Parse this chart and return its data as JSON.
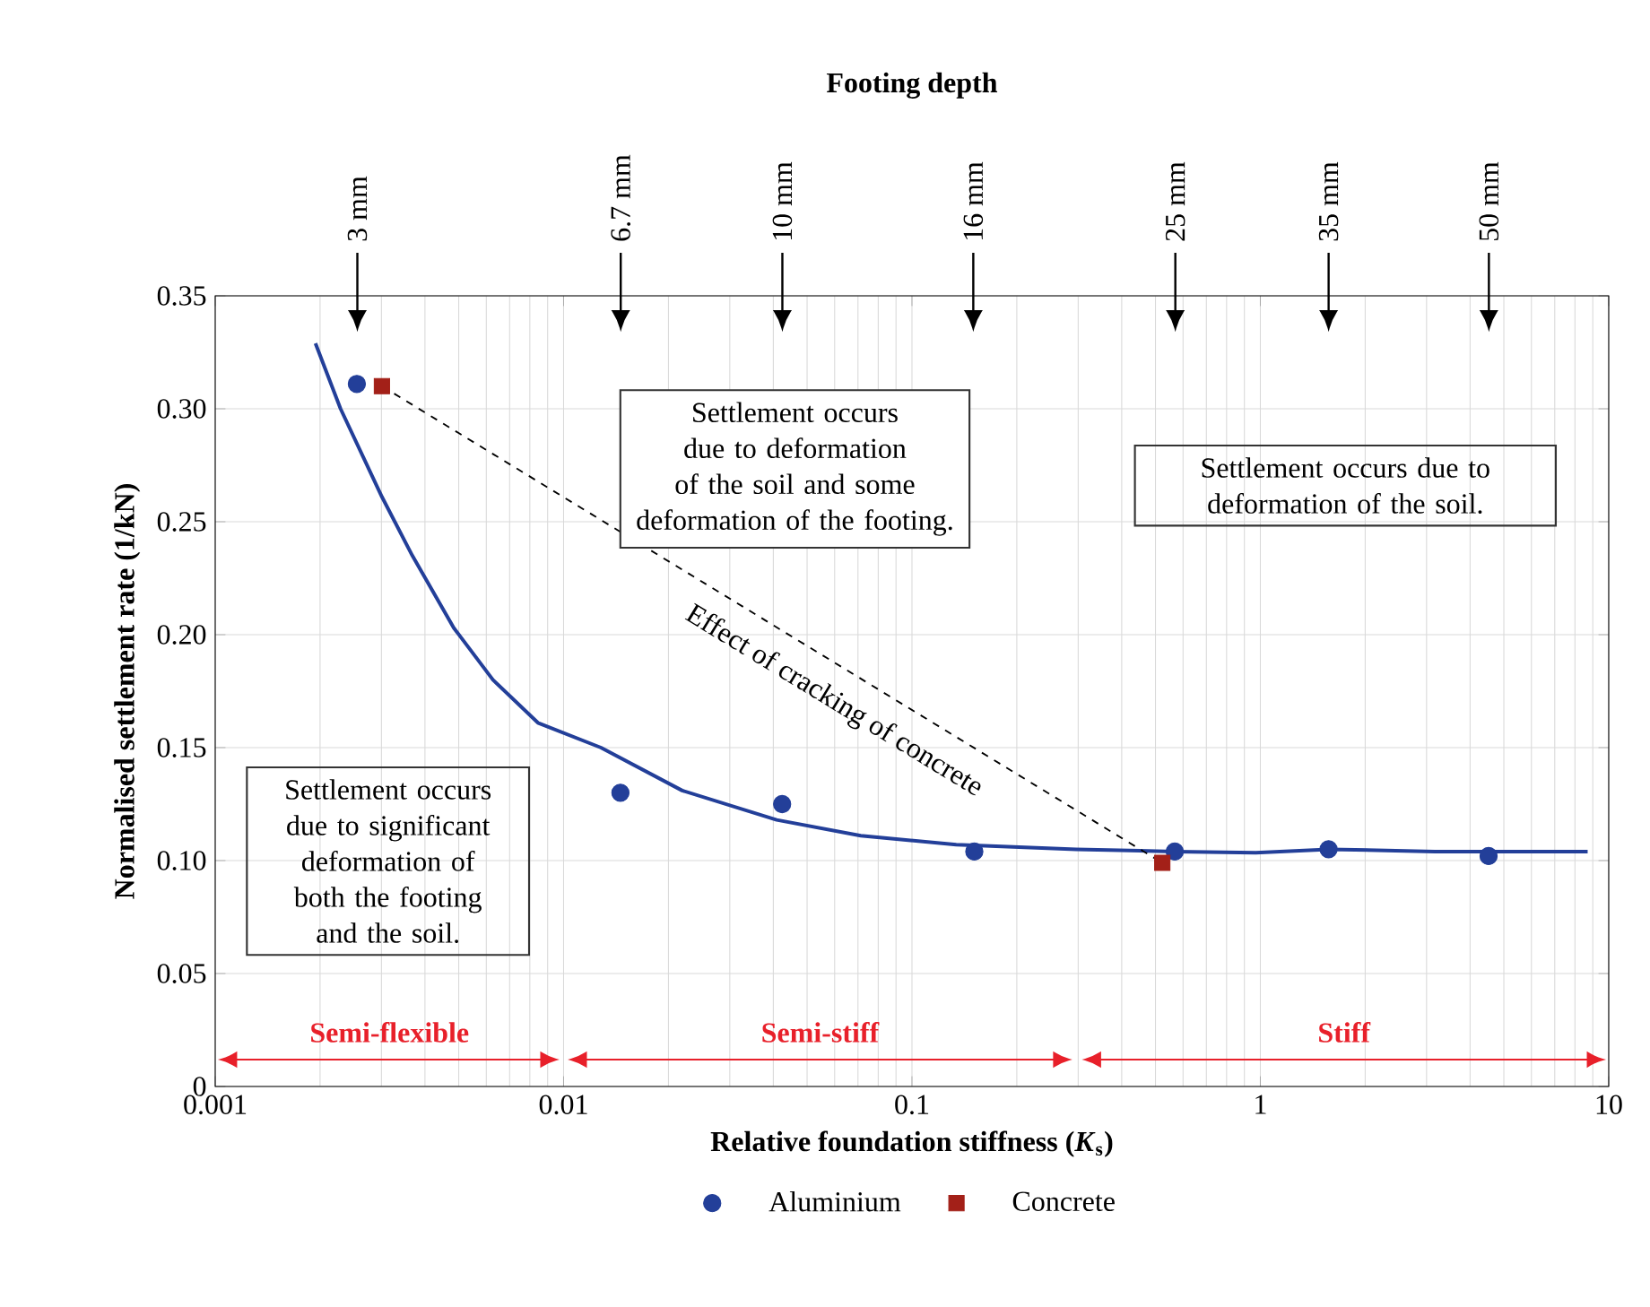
{
  "chart_data": {
    "type": "scatter",
    "xlabel": "Relative foundation stiffness (*K*$_{s}$)",
    "ylabel": "Normalised settlement rate (1/kN)",
    "log": "x",
    "xlim": [
      0.001,
      10
    ],
    "xticks": [
      0.001,
      0.01,
      0.1,
      1,
      10
    ],
    "ylim": [
      0,
      0.35
    ],
    "yticks": [
      0,
      0.05,
      {
        "value": 0.1,
        "label": "0.10"
      },
      0.15,
      {
        "value": 0.2,
        "label": "0.20"
      },
      0.25,
      {
        "value": 0.3,
        "label": "0.30"
      },
      0.35
    ],
    "grid": true,
    "legend": "bottom",
    "series": [
      {
        "type": "line",
        "color": "#233f99",
        "line_style": "solid",
        "marker": "none",
        "x": [
          0.00194,
          0.00229,
          0.00301,
          0.00368,
          0.00484,
          0.00627,
          0.00844,
          0.0128,
          0.0219,
          0.0409,
          0.0713,
          0.134,
          0.296,
          0.568,
          0.97,
          1.57,
          3.17,
          8.7
        ],
        "values": [
          0.329,
          0.3,
          0.261,
          0.235,
          0.203,
          0.18,
          0.161,
          0.15,
          0.131,
          0.118,
          0.111,
          0.107,
          0.105,
          0.104,
          0.1035,
          0.105,
          0.104,
          0.104
        ]
      },
      {
        "type": "line",
        "color": "#000000",
        "line_style": "dashed",
        "marker": "none",
        "x": [
          0.00301,
          0.523
        ],
        "values": [
          0.31,
          0.099
        ]
      },
      {
        "name": "Aluminium",
        "color": "#233f99",
        "marker": "circle",
        "x": [
          0.00255,
          0.01456,
          0.0424,
          0.151,
          0.568,
          1.57,
          4.52
        ],
        "values": [
          0.311,
          0.13,
          0.125,
          0.104,
          0.104,
          0.105,
          0.102
        ]
      },
      {
        "name": "Concrete",
        "color": "#a32018",
        "marker": "square",
        "x": [
          0.00301,
          0.523
        ],
        "values": [
          0.31,
          0.099
        ]
      }
    ],
    "annotations": [
      "Footing depth",
      "3 mm",
      "6.7 mm",
      "10 mm",
      "16 mm",
      "25 mm",
      "35 mm",
      "50 mm",
      "Settlement occurs due to deformation of the soil and some deformation of the footing.",
      "Settlement occurs due to deformation of the soil.",
      "Settlement occurs due to significant deformation of both the footing and the soil.",
      "Effect of cracking of concrete",
      "Semi-flexible",
      "Semi-stiff",
      "Stiff"
    ]
  }
}
